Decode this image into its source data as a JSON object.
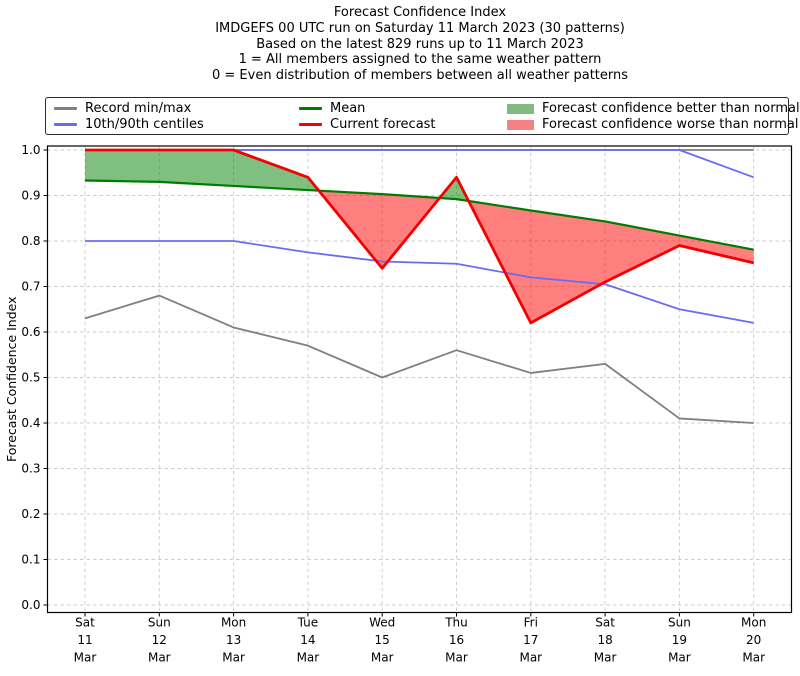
{
  "title": {
    "line1": "Forecast Confidence Index",
    "line2": "IMDGEFS 00 UTC run on Saturday 11 March 2023 (30 patterns)",
    "line3": "Based on the latest 829 runs up to 11 March 2023",
    "line4": "1 = All members assigned to the same weather pattern",
    "line5": "0 = Even distribution of members between all weather patterns"
  },
  "legend": {
    "items": [
      {
        "label": "Record min/max",
        "type": "line",
        "color": "#7f7f7f"
      },
      {
        "label": "10th/90th centiles",
        "type": "line",
        "color": "#6b6bf2"
      },
      {
        "label": "Mean",
        "type": "line",
        "color": "#007d00"
      },
      {
        "label": "Current forecast",
        "type": "line",
        "color": "#f40000"
      },
      {
        "label": "Forecast confidence better than normal",
        "type": "patch",
        "color": "#82bb82"
      },
      {
        "label": "Forecast confidence worse than normal",
        "type": "patch",
        "color": "#f58282"
      }
    ]
  },
  "chart_data": {
    "type": "line",
    "title": "Forecast Confidence Index",
    "xlabel": "",
    "ylabel": "Forecast Confidence Index",
    "ylim": [
      0.0,
      1.0
    ],
    "ytick_step": 0.1,
    "ytick_labels": [
      "0.0",
      "0.1",
      "0.2",
      "0.3",
      "0.4",
      "0.5",
      "0.6",
      "0.7",
      "0.8",
      "0.9",
      "1.0"
    ],
    "grid": true,
    "legend_position": "top",
    "categories": [
      {
        "day": "Sat",
        "date": "11",
        "month": "Mar"
      },
      {
        "day": "Sun",
        "date": "12",
        "month": "Mar"
      },
      {
        "day": "Mon",
        "date": "13",
        "month": "Mar"
      },
      {
        "day": "Tue",
        "date": "14",
        "month": "Mar"
      },
      {
        "day": "Wed",
        "date": "15",
        "month": "Mar"
      },
      {
        "day": "Thu",
        "date": "16",
        "month": "Mar"
      },
      {
        "day": "Fri",
        "date": "17",
        "month": "Mar"
      },
      {
        "day": "Sat",
        "date": "18",
        "month": "Mar"
      },
      {
        "day": "Sun",
        "date": "19",
        "month": "Mar"
      },
      {
        "day": "Mon",
        "date": "20",
        "month": "Mar"
      }
    ],
    "series": [
      {
        "name": "Record max",
        "color": "#7f7f7f",
        "width": 1.8,
        "values": [
          1.0,
          1.0,
          1.0,
          1.0,
          1.0,
          1.0,
          1.0,
          1.0,
          1.0,
          1.0
        ]
      },
      {
        "name": "Record min",
        "color": "#7f7f7f",
        "width": 1.8,
        "values": [
          0.63,
          0.68,
          0.61,
          0.57,
          0.5,
          0.56,
          0.51,
          0.53,
          0.41,
          0.4
        ]
      },
      {
        "name": "90th centile",
        "color": "#6b6bf2",
        "width": 1.8,
        "values": [
          1.0,
          1.0,
          1.0,
          1.0,
          1.0,
          1.0,
          1.0,
          1.0,
          1.0,
          0.94
        ]
      },
      {
        "name": "10th centile",
        "color": "#6b6bf2",
        "width": 1.8,
        "values": [
          0.8,
          0.8,
          0.8,
          0.775,
          0.755,
          0.75,
          0.72,
          0.705,
          0.65,
          0.62
        ]
      },
      {
        "name": "Mean",
        "color": "#007d00",
        "width": 2.2,
        "values": [
          0.933,
          0.93,
          0.921,
          0.912,
          0.903,
          0.892,
          0.867,
          0.843,
          0.812,
          0.781
        ]
      },
      {
        "name": "Current forecast",
        "color": "#f40000",
        "width": 2.8,
        "values": [
          1.0,
          1.0,
          1.0,
          0.94,
          0.74,
          0.94,
          0.62,
          0.71,
          0.79,
          0.752
        ]
      }
    ],
    "fills": {
      "between": [
        "Current forecast",
        "Mean"
      ],
      "better_color": "#008000",
      "worse_color": "#ff0000",
      "opacity": 0.5
    }
  }
}
